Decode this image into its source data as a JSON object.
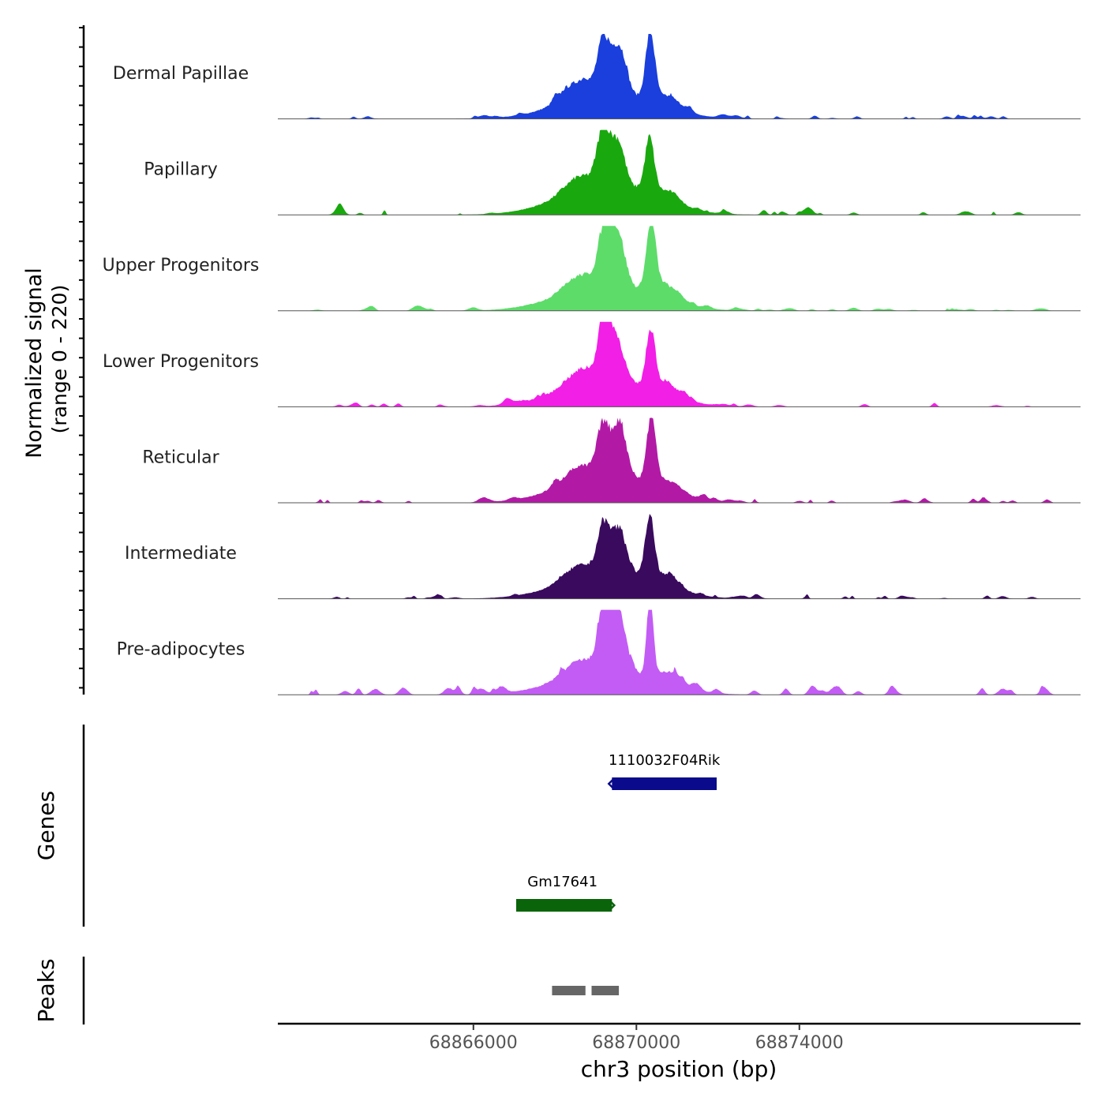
{
  "chart_data": {
    "type": "area",
    "title": "",
    "chromosome": "chr3",
    "xlabel": "chr3 position (bp)",
    "xlim": [
      68861200,
      68880900
    ],
    "xticks": [
      68866000,
      68870000,
      68874000
    ],
    "xtick_labels": [
      "68866000",
      "68870000",
      "68874000"
    ],
    "signal_ylabel_line1": "Normalized signal",
    "signal_ylabel_line2": "(range 0 - 220)",
    "ylim": [
      0,
      220
    ],
    "series": [
      {
        "name": "Dermal Papillae",
        "color": "#1a3fdc"
      },
      {
        "name": "Papillary",
        "color": "#1aa80f"
      },
      {
        "name": "Upper Progenitors",
        "color": "#5ddc6a"
      },
      {
        "name": "Lower Progenitors",
        "color": "#f21fe6"
      },
      {
        "name": "Reticular",
        "color": "#b21aa6"
      },
      {
        "name": "Intermediate",
        "color": "#3a0a5e"
      },
      {
        "name": "Pre-adipocytes",
        "color": "#c35cf5"
      }
    ],
    "shared_peaks": [
      {
        "center": 68868600,
        "width": 500,
        "height": 40
      },
      {
        "center": 68869200,
        "width": 200,
        "height": 150
      },
      {
        "center": 68869550,
        "width": 250,
        "height": 130
      },
      {
        "center": 68870350,
        "width": 160,
        "height": 170
      },
      {
        "center": 68869300,
        "width": 1600,
        "height": 70
      },
      {
        "center": 68870800,
        "width": 400,
        "height": 30
      }
    ],
    "genes_label": "Genes",
    "genes": [
      {
        "name": "1110032F04Rik",
        "start": 68869400,
        "end": 68871970,
        "strand": "-",
        "color": "#0a0a8c"
      },
      {
        "name": "Gm17641",
        "start": 68867050,
        "end": 68869400,
        "strand": "+",
        "color": "#0a640a"
      }
    ],
    "peaks_label": "Peaks",
    "peaks": [
      {
        "start": 68867930,
        "end": 68868750
      },
      {
        "start": 68868900,
        "end": 68869570
      }
    ]
  }
}
